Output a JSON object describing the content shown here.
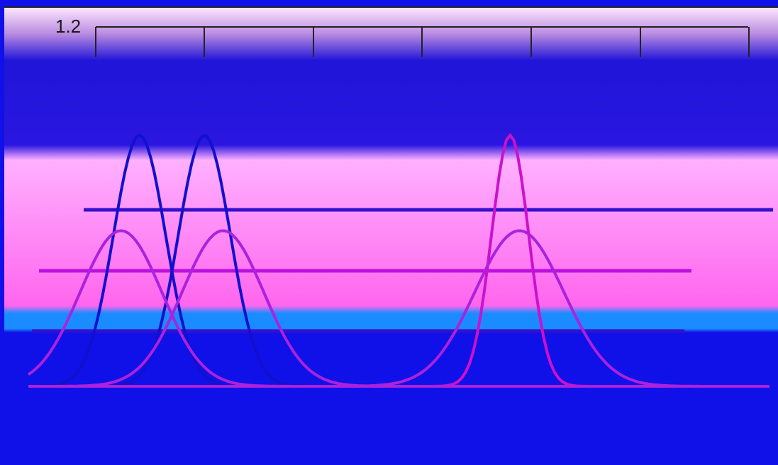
{
  "chart_data": {
    "type": "line",
    "title": "",
    "xlabel": "",
    "ylabel": "",
    "y_tick_top": "1.2",
    "x_ticks": [
      "",
      "",
      "",
      "",
      "",
      ""
    ],
    "ylim": [
      0,
      1.2
    ],
    "xlim": [
      350,
      750
    ],
    "grid": true,
    "series": [
      {
        "color": "#1111cc",
        "peak_x": 410,
        "peak_y": 1.0,
        "width": 14
      },
      {
        "color": "#1111cc",
        "peak_x": 445,
        "peak_y": 1.0,
        "width": 14
      },
      {
        "color": "#cc11cc",
        "peak_x": 610,
        "peak_y": 1.0,
        "width": 10
      },
      {
        "color": "#aa22dd",
        "peak_x": 400,
        "peak_y": 0.62,
        "width": 22
      },
      {
        "color": "#aa22dd",
        "peak_x": 455,
        "peak_y": 0.62,
        "width": 22
      },
      {
        "color": "#aa22dd",
        "peak_x": 615,
        "peak_y": 0.62,
        "width": 24
      }
    ]
  }
}
